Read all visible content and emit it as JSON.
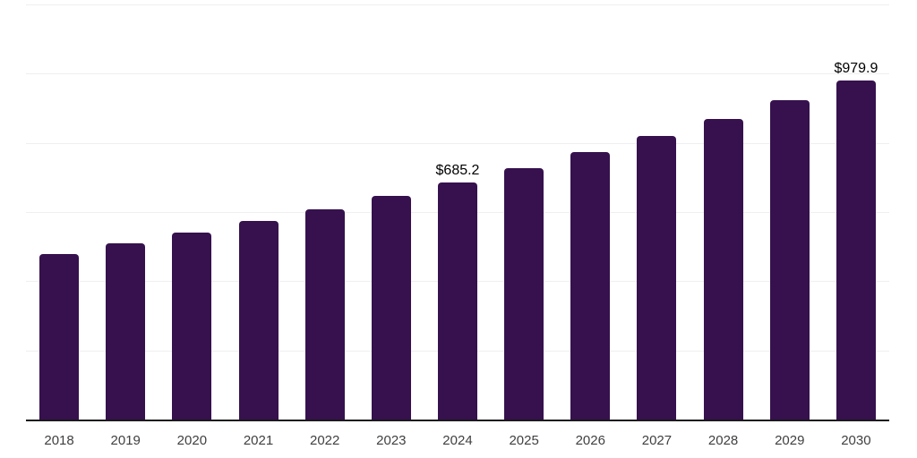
{
  "chart_data": {
    "type": "bar",
    "title": "",
    "xlabel": "",
    "ylabel": "",
    "categories": [
      "2018",
      "2019",
      "2020",
      "2021",
      "2022",
      "2023",
      "2024",
      "2025",
      "2026",
      "2027",
      "2028",
      "2029",
      "2030"
    ],
    "values": [
      479.7,
      509.1,
      540.4,
      573.6,
      608.8,
      645.5,
      685.2,
      727.3,
      772.0,
      819.3,
      869.6,
      923.0,
      979.9
    ],
    "data_labels": [
      {
        "category": "2024",
        "text": "$685.2"
      },
      {
        "category": "2030",
        "text": "$979.9"
      }
    ],
    "ylim": [
      0,
      1200
    ],
    "y_gridline_count": 6,
    "grid": "horizontal",
    "legend": "none",
    "y_tick_labels_visible": false,
    "colors": {
      "bar": "#36114e",
      "gridline": "#efefef",
      "axis_line": "#1a1a1a",
      "tick_label": "#404040",
      "data_label": "#000000",
      "background": "#ffffff"
    }
  }
}
